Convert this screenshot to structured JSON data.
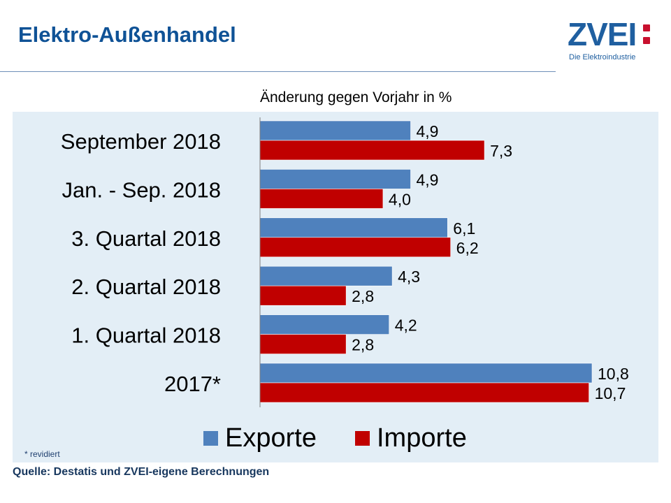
{
  "page": {
    "title": "Elektro-Außenhandel",
    "subtitle": "Änderung gegen Vorjahr in %",
    "source": "Quelle: Destatis und ZVEI-eigene Berechnungen"
  },
  "logo": {
    "word": "ZVEI",
    "tagline": "Die Elektroindustrie"
  },
  "colors": {
    "title": "#0f5296",
    "exports": "#4f81bd",
    "imports": "#c00000",
    "panel": "#e3eef6"
  },
  "chart_data": {
    "type": "bar",
    "orientation": "horizontal",
    "categories": [
      "September 2018",
      "Jan. - Sep. 2018",
      "3. Quartal 2018",
      "2. Quartal 2018",
      "1. Quartal 2018",
      "2017*"
    ],
    "series": [
      {
        "name": "Exporte",
        "values": [
          4.9,
          4.9,
          6.1,
          4.3,
          4.2,
          10.8
        ],
        "labels": [
          "4,9",
          "4,9",
          "6,1",
          "4,3",
          "4,2",
          "10,8"
        ],
        "color": "#4f81bd"
      },
      {
        "name": "Importe",
        "values": [
          7.3,
          4.0,
          6.2,
          2.8,
          2.8,
          10.7
        ],
        "labels": [
          "7,3",
          "4,0",
          "6,2",
          "2,8",
          "2,8",
          "10,7"
        ],
        "color": "#c00000"
      }
    ],
    "xlim": [
      0,
      10.8
    ],
    "legend": "bottom",
    "footnote": "* revidiert"
  }
}
